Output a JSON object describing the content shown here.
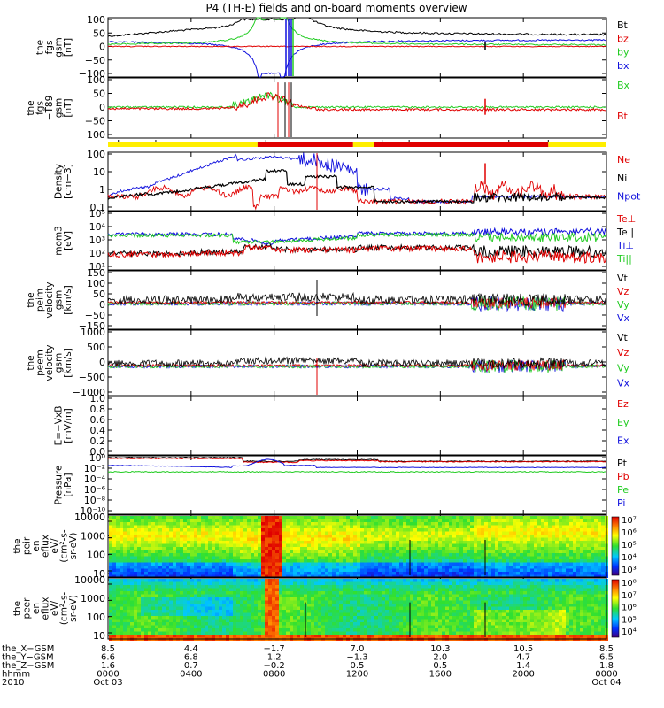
{
  "title": "P4 (TH-E) fields and on-board moments overview",
  "colors": {
    "black": "#000000",
    "red": "#e00000",
    "green": "#22cc22",
    "blue": "#1010dd",
    "yellow": "#ffee00"
  },
  "panels": [
    {
      "id": "fgs",
      "ylabel": [
        "the",
        "fgs",
        "gsm",
        "[nT]"
      ],
      "yticks": [
        "100",
        "50",
        "0",
        "−50",
        "−100"
      ],
      "legend": [
        {
          "text": "Bt",
          "color": "#000000"
        },
        {
          "text": "bz",
          "color": "#e00000"
        },
        {
          "text": "by",
          "color": "#22cc22"
        },
        {
          "text": "bx",
          "color": "#1010dd"
        }
      ]
    },
    {
      "id": "fgs_dt",
      "ylabel": [
        "the",
        "fgs",
        "−T89",
        "gsm",
        "[nT]"
      ],
      "yticks": [
        "100",
        "50",
        "0",
        "−50",
        "−100"
      ],
      "legend": [
        {
          "text": "Bx",
          "color": "#22cc22"
        },
        {
          "text": "Bt",
          "color": "#e00000"
        }
      ]
    },
    {
      "id": "density",
      "ylabel": [
        "Density",
        "[cm−3]"
      ],
      "yticks": [
        "100",
        "10",
        "1",
        "0.1"
      ],
      "legend": [
        {
          "text": "Ne",
          "color": "#e00000"
        },
        {
          "text": "Ni",
          "color": "#000000"
        },
        {
          "text": "Npot",
          "color": "#1010dd"
        }
      ]
    },
    {
      "id": "temperature",
      "ylabel": [
        "mom3",
        "[eV]"
      ],
      "yticks": [
        "10⁵",
        "10⁴",
        "10³",
        "10²",
        "10¹"
      ],
      "legend": [
        {
          "text": "Te⊥",
          "color": "#e00000"
        },
        {
          "text": "Te||",
          "color": "#000000"
        },
        {
          "text": "Ti⊥",
          "color": "#1010dd"
        },
        {
          "text": "Ti||",
          "color": "#22cc22"
        }
      ]
    },
    {
      "id": "peim_velocity",
      "ylabel": [
        "the",
        "peim",
        "velocity",
        "gsm",
        "[km/s]"
      ],
      "yticks": [
        "150",
        "100",
        "50",
        "0",
        "−50",
        "−150"
      ],
      "legend": [
        {
          "text": "Vt",
          "color": "#000000"
        },
        {
          "text": "Vz",
          "color": "#e00000"
        },
        {
          "text": "Vy",
          "color": "#22cc22"
        },
        {
          "text": "Vx",
          "color": "#1010dd"
        }
      ]
    },
    {
      "id": "peem_velocity",
      "ylabel": [
        "the",
        "peem",
        "velocity",
        "gsm",
        "[km/s]"
      ],
      "yticks": [
        "1000",
        "500",
        "0",
        "−500",
        "−1000"
      ],
      "legend": [
        {
          "text": "Vt",
          "color": "#000000"
        },
        {
          "text": "Vz",
          "color": "#e00000"
        },
        {
          "text": "Vy",
          "color": "#22cc22"
        },
        {
          "text": "Vx",
          "color": "#1010dd"
        }
      ]
    },
    {
      "id": "e_field",
      "ylabel": [
        "E=−VxB",
        "[mV/m]"
      ],
      "yticks": [
        "1.0",
        "0.8",
        "0.6",
        "0.4",
        "0.2",
        "0.0"
      ],
      "legend": [
        {
          "text": "Ez",
          "color": "#e00000"
        },
        {
          "text": "Ey",
          "color": "#22cc22"
        },
        {
          "text": "Ex",
          "color": "#1010dd"
        }
      ]
    },
    {
      "id": "pressure",
      "ylabel": [
        "Pressure",
        "[nPa]"
      ],
      "yticks": [
        "10⁰",
        "10⁻²",
        "10⁻⁴",
        "10⁻⁶",
        "10⁻⁸",
        "10⁻¹⁰"
      ],
      "legend": [
        {
          "text": "Pt",
          "color": "#000000"
        },
        {
          "text": "Pb",
          "color": "#e00000"
        },
        {
          "text": "Pe",
          "color": "#22cc22"
        },
        {
          "text": "Pi",
          "color": "#1010dd"
        }
      ]
    },
    {
      "id": "peir_spec",
      "ylabel": [
        "the",
        "peir",
        "en",
        "eflux",
        "eV/",
        "(cm²-s-",
        "sr-eV)"
      ],
      "yticks": [
        "10000",
        "1000",
        "100",
        "10"
      ],
      "colorbar": [
        "10⁷",
        "10⁶",
        "10⁵",
        "10⁴",
        "10³"
      ]
    },
    {
      "id": "peer_spec",
      "ylabel": [
        "the",
        "peer",
        "en",
        "eflux",
        "eV/",
        "(cm²-s-",
        "sr-eV)"
      ],
      "yticks": [
        "10000",
        "1000",
        "100",
        "10"
      ],
      "colorbar": [
        "10⁸",
        "10⁷",
        "10⁶",
        "10⁵",
        "10⁴"
      ]
    }
  ],
  "xaxis": {
    "row_labels": [
      "the_X−GSM",
      "the_Y−GSM",
      "the_Z−GSM",
      "hhmm",
      "2010"
    ],
    "columns": [
      [
        "8.5",
        "6.6",
        "1.6",
        "0000",
        "Oct 03"
      ],
      [
        "4.4",
        "6.8",
        "0.7",
        "0400",
        ""
      ],
      [
        "−1.7",
        "1.2",
        "−0.2",
        "0800",
        ""
      ],
      [
        "7.0",
        "−1.3",
        "0.5",
        "1200",
        ""
      ],
      [
        "10.3",
        "2.0",
        "0.5",
        "1600",
        ""
      ],
      [
        "10.5",
        "4.7",
        "1.4",
        "2000",
        ""
      ],
      [
        "8.5",
        "6.5",
        "1.8",
        "0000",
        "Oct 04"
      ]
    ]
  },
  "chart_data": {
    "type": "line",
    "title": "P4 (TH-E) fields and on-board moments overview",
    "x": [
      "0000",
      "0400",
      "0800",
      "1200",
      "1600",
      "2000",
      "0000"
    ],
    "xlabel": "hhmm",
    "date_start": "Oct 03 2010",
    "date_end": "Oct 04 2010",
    "ephemeris": {
      "the_X-GSM": [
        8.5,
        4.4,
        -1.7,
        7.0,
        10.3,
        10.5,
        8.5
      ],
      "the_Y-GSM": [
        6.6,
        6.8,
        1.2,
        -1.3,
        2.0,
        4.7,
        6.5
      ],
      "the_Z-GSM": [
        1.6,
        0.7,
        -0.2,
        0.5,
        0.5,
        1.4,
        1.8
      ]
    },
    "panel_ranges": {
      "fgs": [
        -100,
        100
      ],
      "fgs_dt": [
        -120,
        120
      ],
      "density": [
        0.1,
        200
      ],
      "temperature": [
        10,
        100000
      ],
      "peim_velocity": [
        -150,
        150
      ],
      "peem_velocity": [
        -1000,
        1000
      ],
      "e_field": [
        0,
        1
      ],
      "pressure": [
        1e-10,
        1
      ],
      "peir_energy_eV": [
        7,
        25000
      ],
      "peer_energy_eV": [
        7,
        25000
      ]
    },
    "series": [
      {
        "name": "Bt",
        "panel": "fgs",
        "values": [
          45,
          55,
          100,
          60,
          46,
          44,
          42
        ]
      },
      {
        "name": "Ni",
        "panel": "density",
        "values": [
          0.5,
          1.5,
          20,
          1.0,
          0.3,
          0.35,
          0.3
        ]
      },
      {
        "name": "Ne",
        "panel": "density",
        "values": [
          0.4,
          0.6,
          1.5,
          2.0,
          0.2,
          2.0,
          0.5
        ]
      },
      {
        "name": "Npot",
        "panel": "density",
        "values": [
          0.6,
          15,
          150,
          50,
          0.3,
          0.4,
          0.4
        ]
      },
      {
        "name": "Ti⊥",
        "panel": "temperature",
        "values": [
          3000,
          2500,
          250,
          2000,
          4000,
          5000,
          4500
        ]
      },
      {
        "name": "Te⊥",
        "panel": "temperature",
        "values": [
          150,
          100,
          300,
          150,
          200,
          250,
          200
        ]
      }
    ]
  }
}
